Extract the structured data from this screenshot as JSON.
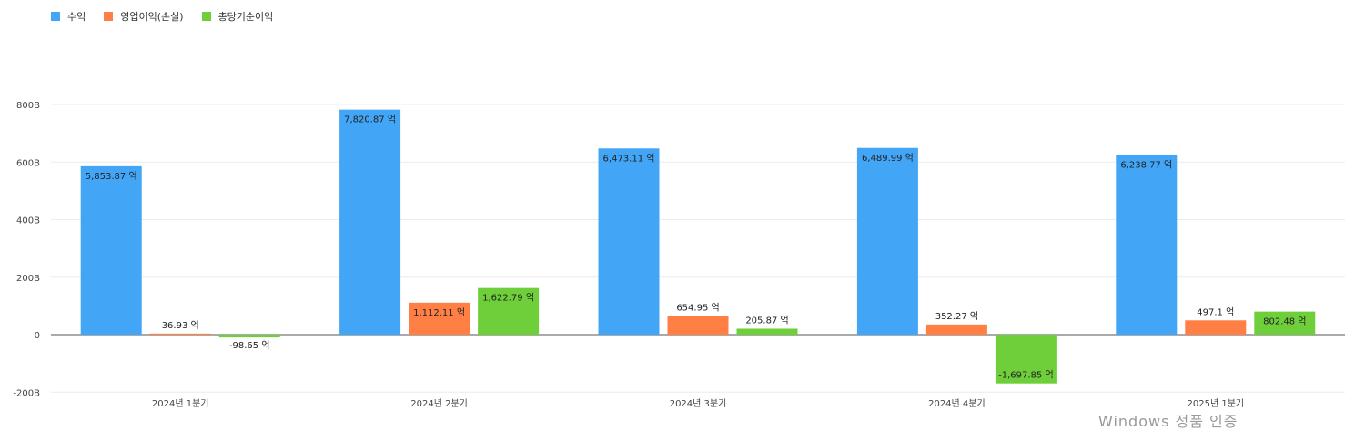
{
  "legend": [
    {
      "label": "수익",
      "color": "#42a5f5"
    },
    {
      "label": "영업이익(손실)",
      "color": "#ff7f45"
    },
    {
      "label": "총당기순이익",
      "color": "#6fcf3a"
    }
  ],
  "chart_data": {
    "type": "bar",
    "categories": [
      "2024년 1분기",
      "2024년 2분기",
      "2024년 3분기",
      "2024년 4분기",
      "2025년 1분기"
    ],
    "series": [
      {
        "name": "수익",
        "values": [
          585.387,
          782.087,
          647.311,
          648.999,
          623.877
        ],
        "labels": [
          "5,853.87 억",
          "7,820.87 억",
          "6,473.11 억",
          "6,489.99 억",
          "6,238.77 억"
        ],
        "color": "#42a5f5"
      },
      {
        "name": "영업이익(손실)",
        "values": [
          3.693,
          111.211,
          65.495,
          35.227,
          49.71
        ],
        "labels": [
          "36.93 억",
          "1,112.11 억",
          "654.95 억",
          "352.27 억",
          "497.1 억"
        ],
        "color": "#ff7f45"
      },
      {
        "name": "총당기순이익",
        "values": [
          -9.865,
          162.279,
          20.587,
          -169.785,
          80.248
        ],
        "labels": [
          "-98.65 억",
          "1,622.79 억",
          "205.87 억",
          "-1,697.85 억",
          "802.48 억"
        ],
        "color": "#6fcf3a"
      }
    ],
    "yticks": [
      -200,
      0,
      200,
      400,
      600,
      800
    ],
    "ytick_labels": [
      "-200B",
      "0",
      "200B",
      "400B",
      "600B",
      "800B"
    ],
    "ylim": [
      -200,
      800
    ],
    "ylabel": "",
    "xlabel": "",
    "grid": true,
    "legend_position": "top-left"
  },
  "watermark": "Windows 정품 인증"
}
